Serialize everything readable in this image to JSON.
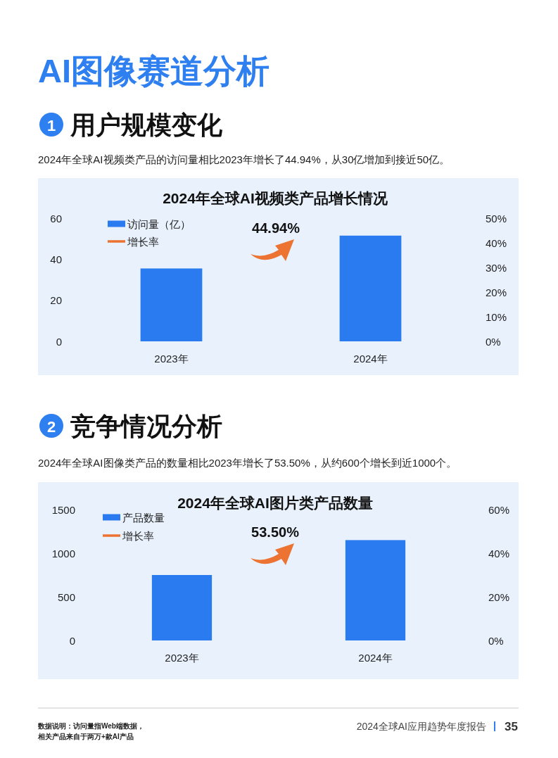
{
  "chart_data": [
    {
      "type": "bar",
      "title": "2024年全球AI视频类产品增长情况",
      "categories": [
        "2023年",
        "2024年"
      ],
      "series": [
        {
          "name": "访问量（亿）",
          "color": "#2b7bf0",
          "values": [
            35.5,
            51.5
          ]
        },
        {
          "name": "增长率",
          "color": "#ec7331",
          "type": "line",
          "values": [
            null,
            null
          ]
        }
      ],
      "ylim": [
        0,
        60
      ],
      "yticks": [
        0,
        20,
        40,
        60
      ],
      "y2lim": [
        0,
        50
      ],
      "y2ticks": [
        {
          "value": 0,
          "label": "0%"
        },
        {
          "value": 10,
          "label": "10%"
        },
        {
          "value": 20,
          "label": "20%"
        },
        {
          "value": 30,
          "label": "30%"
        },
        {
          "value": 40,
          "label": "40%"
        },
        {
          "value": 50,
          "label": "50%"
        }
      ],
      "legend": "top left",
      "annotations": [
        "AI图像赛道分析",
        "1",
        "用户规模变化",
        "2024年全球AI视频类产品的访问量相比2023年增长了44.94%，从30亿增加到接近50亿。",
        "44.94%"
      ]
    },
    {
      "type": "bar",
      "title": "2024年全球AI图片类产品数量",
      "categories": [
        "2023年",
        "2024年"
      ],
      "series": [
        {
          "name": "产品数量",
          "color": "#2b7bf0",
          "values": [
            750,
            1150
          ]
        },
        {
          "name": "增长率",
          "color": "#ec7331",
          "type": "line",
          "values": [
            null,
            null
          ]
        }
      ],
      "ylim": [
        0,
        1500
      ],
      "yticks": [
        0,
        500,
        1000,
        1500
      ],
      "y2lim": [
        0,
        60
      ],
      "y2ticks": [
        {
          "value": 0,
          "label": "0%"
        },
        {
          "value": 20,
          "label": "20%"
        },
        {
          "value": 40,
          "label": "40%"
        },
        {
          "value": 60,
          "label": "60%"
        }
      ],
      "legend": "top left",
      "annotations": [
        "2",
        "竞争情况分析",
        "2024年全球AI图像类产品的数量相比2023年增长了53.50%，从约600个增长到近1000个。",
        "53.50%",
        "数据说明：访问量指Web端数据，",
        "相关产品来自于两万+款AI产品",
        "2024全球AI应用趋势年度报告",
        "35"
      ]
    }
  ]
}
